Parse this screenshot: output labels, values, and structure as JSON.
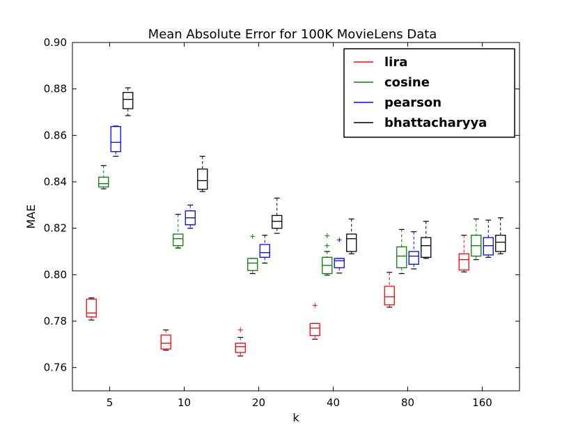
{
  "chart_data": {
    "type": "boxplot",
    "title": "Mean Absolute Error for 100K MovieLens Data",
    "xlabel": "k",
    "ylabel": "MAE",
    "categories": [
      "5",
      "10",
      "20",
      "40",
      "80",
      "160"
    ],
    "ylim": [
      0.75,
      0.9
    ],
    "yticks": [
      "0.76",
      "0.78",
      "0.80",
      "0.82",
      "0.84",
      "0.86",
      "0.88",
      "0.90"
    ],
    "grid": false,
    "legend_position": "top-right",
    "series": [
      {
        "name": "lira",
        "color": "#ff0000",
        "boxes": [
          {
            "whislo": 0.7805,
            "q1": 0.7818,
            "med": 0.7835,
            "q3": 0.7895,
            "whishi": 0.79,
            "fliers": []
          },
          {
            "whislo": 0.7675,
            "q1": 0.768,
            "med": 0.7705,
            "q3": 0.774,
            "whishi": 0.7762,
            "fliers": []
          },
          {
            "whislo": 0.765,
            "q1": 0.7665,
            "med": 0.769,
            "q3": 0.7705,
            "whishi": 0.773,
            "fliers": [
              0.7762
            ]
          },
          {
            "whislo": 0.7722,
            "q1": 0.7738,
            "med": 0.777,
            "q3": 0.779,
            "whishi": 0.779,
            "fliers": [
              0.7868
            ]
          },
          {
            "whislo": 0.786,
            "q1": 0.787,
            "med": 0.7905,
            "q3": 0.795,
            "whishi": 0.801,
            "fliers": []
          },
          {
            "whislo": 0.8012,
            "q1": 0.802,
            "med": 0.8065,
            "q3": 0.809,
            "whishi": 0.817,
            "fliers": []
          }
        ]
      },
      {
        "name": "cosine",
        "color": "#008000",
        "boxes": [
          {
            "whislo": 0.837,
            "q1": 0.8378,
            "med": 0.8392,
            "q3": 0.842,
            "whishi": 0.847,
            "fliers": []
          },
          {
            "whislo": 0.8115,
            "q1": 0.8125,
            "med": 0.8155,
            "q3": 0.8175,
            "whishi": 0.826,
            "fliers": []
          },
          {
            "whislo": 0.8005,
            "q1": 0.8018,
            "med": 0.805,
            "q3": 0.807,
            "whishi": 0.807,
            "fliers": [
              0.8165
            ]
          },
          {
            "whislo": 0.7998,
            "q1": 0.8005,
            "med": 0.804,
            "q3": 0.8075,
            "whishi": 0.81,
            "fliers": [
              0.8168,
              0.8125
            ]
          },
          {
            "whislo": 0.8005,
            "q1": 0.803,
            "med": 0.808,
            "q3": 0.812,
            "whishi": 0.8195,
            "fliers": []
          },
          {
            "whislo": 0.8065,
            "q1": 0.808,
            "med": 0.8125,
            "q3": 0.817,
            "whishi": 0.824,
            "fliers": []
          }
        ]
      },
      {
        "name": "pearson",
        "color": "#0000ff",
        "boxes": [
          {
            "whislo": 0.851,
            "q1": 0.853,
            "med": 0.857,
            "q3": 0.8638,
            "whishi": 0.864,
            "fliers": []
          },
          {
            "whislo": 0.82,
            "q1": 0.8215,
            "med": 0.8245,
            "q3": 0.8275,
            "whishi": 0.83,
            "fliers": []
          },
          {
            "whislo": 0.805,
            "q1": 0.8075,
            "med": 0.8095,
            "q3": 0.813,
            "whishi": 0.817,
            "fliers": []
          },
          {
            "whislo": 0.8007,
            "q1": 0.803,
            "med": 0.806,
            "q3": 0.807,
            "whishi": 0.807,
            "fliers": [
              0.815
            ]
          },
          {
            "whislo": 0.8025,
            "q1": 0.8045,
            "med": 0.808,
            "q3": 0.81,
            "whishi": 0.8185,
            "fliers": []
          },
          {
            "whislo": 0.8075,
            "q1": 0.8085,
            "med": 0.8125,
            "q3": 0.816,
            "whishi": 0.8235,
            "fliers": []
          }
        ]
      },
      {
        "name": "bhattacharyya",
        "color": "#000000",
        "boxes": [
          {
            "whislo": 0.8685,
            "q1": 0.8715,
            "med": 0.8755,
            "q3": 0.8785,
            "whishi": 0.8805,
            "fliers": []
          },
          {
            "whislo": 0.8358,
            "q1": 0.8368,
            "med": 0.8405,
            "q3": 0.8455,
            "whishi": 0.851,
            "fliers": []
          },
          {
            "whislo": 0.8178,
            "q1": 0.82,
            "med": 0.823,
            "q3": 0.8255,
            "whishi": 0.833,
            "fliers": []
          },
          {
            "whislo": 0.809,
            "q1": 0.81,
            "med": 0.8155,
            "q3": 0.8175,
            "whishi": 0.824,
            "fliers": []
          },
          {
            "whislo": 0.807,
            "q1": 0.8075,
            "med": 0.8125,
            "q3": 0.816,
            "whishi": 0.823,
            "fliers": []
          },
          {
            "whislo": 0.809,
            "q1": 0.81,
            "med": 0.814,
            "q3": 0.817,
            "whishi": 0.8245,
            "fliers": []
          }
        ]
      }
    ]
  }
}
